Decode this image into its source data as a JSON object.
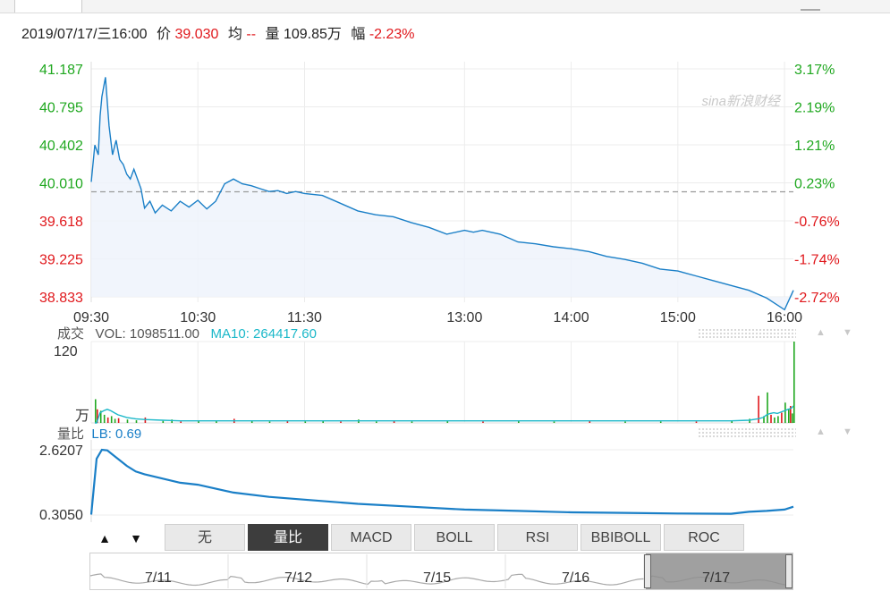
{
  "info": {
    "datetime": "2019/07/17/三16:00",
    "price_label": "价",
    "price": "39.030",
    "avg_label": "均",
    "avg": "--",
    "volume_label": "量",
    "volume": "109.85万",
    "change_label": "幅",
    "change": "-2.23%"
  },
  "watermark": "sina新浪财经",
  "colors": {
    "line": "#1a7fc7",
    "up": "#20a820",
    "down": "#e0181c",
    "ma": "#1bb8c9"
  },
  "chart_data": [
    {
      "type": "line",
      "name": "intraday-price",
      "xticks": [
        "09:30",
        "10:30",
        "11:30",
        "13:00",
        "14:00",
        "15:00",
        "16:00"
      ],
      "yticks_left": [
        "41.187",
        "40.795",
        "40.402",
        "40.010",
        "39.618",
        "39.225",
        "38.833"
      ],
      "yticks_right": [
        "3.17%",
        "2.19%",
        "1.21%",
        "0.23%",
        "-0.76%",
        "-1.74%",
        "-2.72%"
      ],
      "ylim": [
        38.833,
        41.187
      ],
      "prev_close": 39.918,
      "x": [
        0,
        2,
        4,
        5,
        6,
        8,
        10,
        12,
        14,
        16,
        18,
        20,
        22,
        24,
        26,
        28,
        30,
        33,
        36,
        40,
        45,
        50,
        55,
        60,
        65,
        70,
        75,
        80,
        85,
        90,
        95,
        100,
        105,
        110,
        115,
        120,
        130,
        140,
        150,
        160,
        170,
        180,
        190,
        200,
        210,
        215,
        220,
        230,
        240,
        250,
        260,
        270,
        280,
        290,
        300,
        310,
        320,
        330,
        340,
        350,
        360,
        370,
        380,
        390,
        395
      ],
      "y": [
        40.02,
        40.4,
        40.3,
        40.7,
        40.9,
        41.1,
        40.6,
        40.3,
        40.45,
        40.25,
        40.2,
        40.1,
        40.05,
        40.15,
        40.05,
        39.95,
        39.75,
        39.82,
        39.7,
        39.78,
        39.72,
        39.82,
        39.76,
        39.83,
        39.74,
        39.82,
        40.0,
        40.05,
        40.0,
        39.98,
        39.95,
        39.92,
        39.93,
        39.9,
        39.92,
        39.9,
        39.88,
        39.8,
        39.72,
        39.68,
        39.66,
        39.6,
        39.55,
        39.48,
        39.52,
        39.5,
        39.52,
        39.48,
        39.4,
        39.38,
        39.35,
        39.33,
        39.3,
        39.25,
        39.22,
        39.18,
        39.12,
        39.1,
        39.05,
        39.0,
        38.95,
        38.9,
        38.82,
        38.7,
        38.9
      ]
    },
    {
      "type": "bar",
      "name": "volume",
      "label": "成交",
      "vol_text": "VOL: 1098511.00",
      "ma_text": "MA10: 264417.60",
      "ytick_top": "120",
      "unit": "万",
      "ylim": [
        0,
        120
      ],
      "x": [
        2,
        3,
        5,
        7,
        9,
        11,
        13,
        15,
        20,
        25,
        30,
        40,
        45,
        50,
        60,
        70,
        80,
        90,
        100,
        110,
        120,
        130,
        140,
        150,
        160,
        170,
        180,
        200,
        220,
        240,
        260,
        280,
        300,
        320,
        340,
        360,
        370,
        375,
        378,
        380,
        382,
        384,
        386,
        388,
        390,
        392,
        393,
        394,
        395
      ],
      "values": [
        35,
        20,
        18,
        12,
        8,
        10,
        6,
        7,
        5,
        4,
        8,
        3,
        5,
        2,
        4,
        3,
        6,
        3,
        2,
        4,
        2,
        3,
        2,
        5,
        2,
        3,
        2,
        3,
        2,
        3,
        2,
        3,
        2,
        2,
        2,
        3,
        6,
        40,
        10,
        45,
        12,
        8,
        10,
        15,
        30,
        20,
        25,
        14,
        120
      ],
      "ma": [
        0,
        0,
        15,
        18,
        20,
        18,
        15,
        12,
        8,
        6,
        5,
        4,
        3.5,
        3,
        3,
        3,
        3,
        3,
        3,
        3,
        3,
        3,
        3,
        3,
        3,
        3,
        3,
        3,
        3,
        3,
        3,
        3,
        3,
        3,
        3,
        3,
        4,
        6,
        8,
        12,
        14,
        15,
        14,
        16,
        18,
        20,
        21,
        22,
        25
      ]
    },
    {
      "type": "line",
      "name": "volume-ratio",
      "label": "量比",
      "lb_text": "LB: 0.69",
      "yticks": [
        "2.6207",
        "0.3050"
      ],
      "ylim": [
        0.305,
        2.6207
      ],
      "x": [
        0,
        3,
        6,
        9,
        12,
        15,
        20,
        25,
        30,
        40,
        50,
        60,
        80,
        100,
        120,
        150,
        180,
        210,
        240,
        270,
        300,
        330,
        360,
        370,
        380,
        390,
        395
      ],
      "y": [
        0.32,
        2.3,
        2.62,
        2.6,
        2.45,
        2.3,
        2.05,
        1.85,
        1.75,
        1.6,
        1.45,
        1.38,
        1.1,
        0.95,
        0.85,
        0.7,
        0.6,
        0.5,
        0.45,
        0.4,
        0.38,
        0.36,
        0.35,
        0.42,
        0.45,
        0.5,
        0.6
      ]
    }
  ],
  "indicator_buttons": [
    "无",
    "量比",
    "MACD",
    "BOLL",
    "RSI",
    "BBIBOLL",
    "ROC"
  ],
  "active_indicator": "量比",
  "arrows": {
    "up": "▲",
    "down": "▼"
  },
  "navigator": {
    "dates": [
      "7/11",
      "7/12",
      "7/15",
      "7/16",
      "7/17"
    ]
  }
}
